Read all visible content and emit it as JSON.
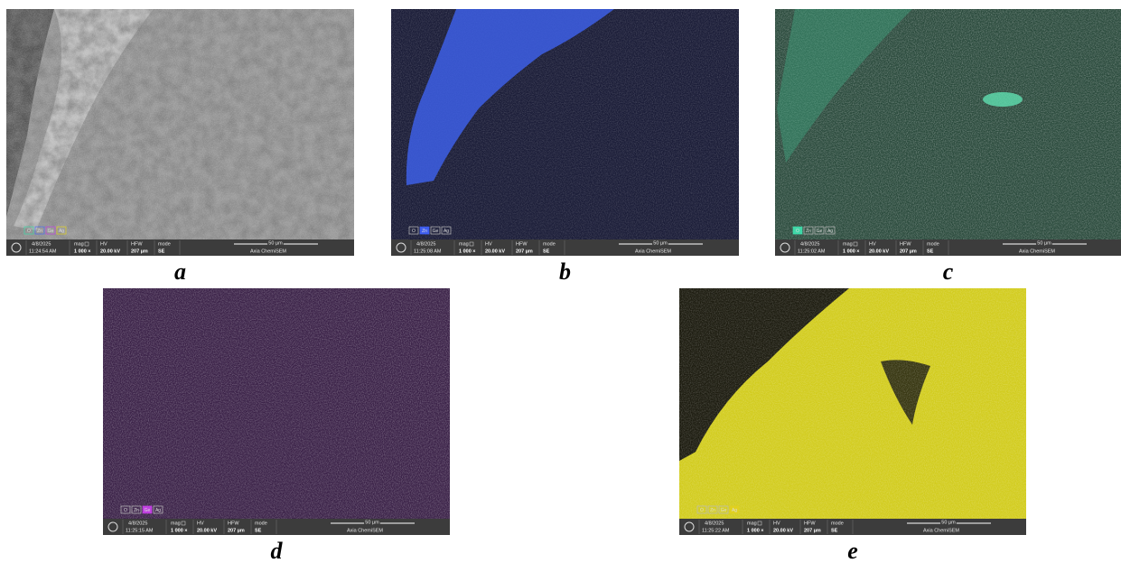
{
  "panels": [
    {
      "label": "a",
      "date": "4/8/2025",
      "time": "11:24:54 AM",
      "mag_label": "mag",
      "mag": "1 000 ×",
      "hv_label": "HV",
      "hv": "20.00 kV",
      "hfw_label": "HFW",
      "hfw": "207 µm",
      "mode_label": "mode",
      "mode": "SE",
      "scale": "50 µm",
      "instrument": "Axia ChemiSEM",
      "elements": [
        "O",
        "Zn",
        "Ge",
        "Ag"
      ],
      "tag_colors": [
        "#3fd8a8",
        "#4a6cf0",
        "#c040e0",
        "#e0d020"
      ]
    },
    {
      "label": "b",
      "date": "4/8/2025",
      "time": "11:25:08 AM",
      "mag_label": "mag",
      "mag": "1 000 ×",
      "hv_label": "HV",
      "hv": "20.00 kV",
      "hfw_label": "HFW",
      "hfw": "207 µm",
      "mode_label": "mode",
      "mode": "SE",
      "scale": "50 µm",
      "instrument": "Axia ChemiSEM",
      "elements": [
        "O",
        "Zn",
        "Ge",
        "Ag"
      ],
      "highlight": 1,
      "highlight_color": "#3f5ef0"
    },
    {
      "label": "c",
      "date": "4/8/2025",
      "time": "11:25:02 AM",
      "mag_label": "mag",
      "mag": "1 000 ×",
      "hv_label": "HV",
      "hv": "20.00 kV",
      "hfw_label": "HFW",
      "hfw": "207 µm",
      "mode_label": "mode",
      "mode": "SE",
      "scale": "50 µm",
      "instrument": "Axia ChemiSEM",
      "elements": [
        "O",
        "Zn",
        "Ge",
        "Ag"
      ],
      "highlight": 0,
      "highlight_color": "#3fd8a8"
    },
    {
      "label": "d",
      "date": "4/8/2025",
      "time": "11:25:15 AM",
      "mag_label": "mag",
      "mag": "1 000 ×",
      "hv_label": "HV",
      "hv": "20.00 kV",
      "hfw_label": "HFW",
      "hfw": "207 µm",
      "mode_label": "mode",
      "mode": "SE",
      "scale": "50 µm",
      "instrument": "Axia ChemiSEM",
      "elements": [
        "O",
        "Zn",
        "Ge",
        "Ag"
      ],
      "highlight": 2,
      "highlight_color": "#c040e0"
    },
    {
      "label": "e",
      "date": "4/8/2025",
      "time": "11:25:22 AM",
      "mag_label": "mag",
      "mag": "1 000 ×",
      "hv_label": "HV",
      "hv": "20.00 kV",
      "hfw_label": "HFW",
      "hfw": "207 µm",
      "mode_label": "mode",
      "mode": "SE",
      "scale": "50 µm",
      "instrument": "Axia ChemiSEM",
      "elements": [
        "O",
        "Zn",
        "Ge",
        "Ag"
      ],
      "highlight": 3,
      "highlight_color": "#e0d020"
    }
  ]
}
